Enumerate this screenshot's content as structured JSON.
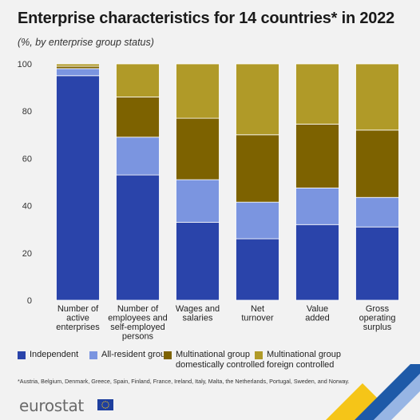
{
  "header": {
    "title": "Enterprise characteristics for 14 countries* in 2022",
    "subtitle": "(%, by enterprise group status)"
  },
  "chart_data": {
    "type": "bar",
    "stacked": true,
    "categories": [
      [
        "Number of",
        "active",
        "enterprises"
      ],
      [
        "Number of",
        "employees and",
        "self-employed",
        "persons"
      ],
      [
        "Wages and",
        "salaries"
      ],
      [
        "Net",
        "turnover"
      ],
      [
        "Value",
        "added"
      ],
      [
        "Gross",
        "operating",
        "surplus"
      ]
    ],
    "series": [
      {
        "name": "Independent",
        "color": "#2a44aa",
        "values": [
          95,
          53,
          33,
          26,
          32,
          31
        ]
      },
      {
        "name": "All-resident group",
        "color": "#7b95e0",
        "values": [
          3,
          16,
          18,
          15.5,
          15.5,
          12.5
        ]
      },
      {
        "name": "Multinational group domestically controlled",
        "color": "#7d6200",
        "values": [
          1,
          17,
          26,
          28.5,
          27,
          28.5
        ]
      },
      {
        "name": "Multinational group foreign controlled",
        "color": "#b09a28",
        "values": [
          1,
          14,
          23,
          30,
          25.5,
          28
        ]
      }
    ],
    "ylim": [
      0,
      100
    ],
    "yticks": [
      0,
      20,
      40,
      60,
      80,
      100
    ],
    "grid": false,
    "legend_position": "bottom"
  },
  "legend": [
    {
      "label_lines": [
        "Independent"
      ],
      "color": "#2a44aa"
    },
    {
      "label_lines": [
        "All-resident group"
      ],
      "color": "#7b95e0"
    },
    {
      "label_lines": [
        "Multinational group",
        "domestically controlled"
      ],
      "color": "#7d6200"
    },
    {
      "label_lines": [
        "Multinational group",
        "foreign controlled"
      ],
      "color": "#b09a28"
    }
  ],
  "footnote": "*Austria, Belgium, Denmark, Greece, Spain, Finland, France, Ireland, Italy, Malta, the Netherlands, Portugal, Sweden, and Norway.",
  "brand": {
    "name": "eurostat"
  },
  "colors": {
    "background": "#f2f2f2",
    "accent_blue": "#1e5aa8",
    "accent_yellow": "#f5c518"
  }
}
